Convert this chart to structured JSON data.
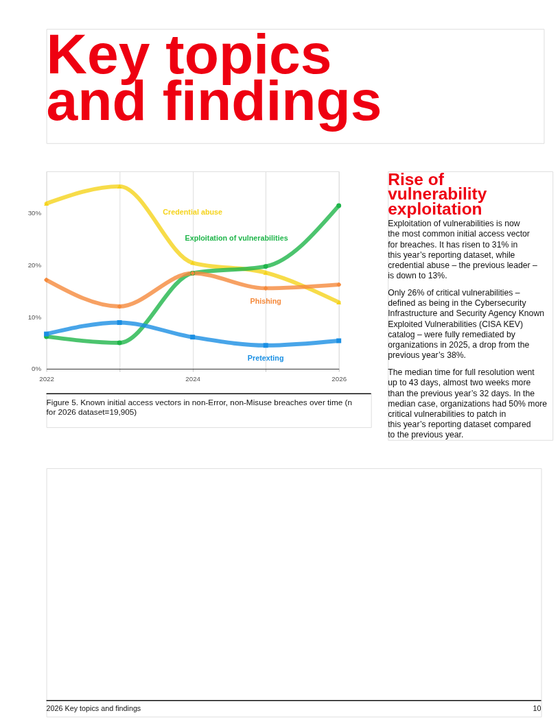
{
  "chart_data": {
    "type": "line",
    "title": "Key topics and findings",
    "x": [
      2022,
      2023,
      2024,
      2025,
      2026
    ],
    "xlim": [
      2022,
      2026
    ],
    "xticks": [
      2022,
      {
        "value": 2023,
        "label": null
      },
      2024,
      {
        "value": 2025,
        "label": null
      },
      2026
    ],
    "ylim": [
      0,
      38
    ],
    "yticks": [
      {
        "value": 0,
        "label": "0%"
      },
      {
        "value": 10,
        "label": "10%"
      },
      {
        "value": 20,
        "label": "20%"
      },
      {
        "value": 30,
        "label": "30%"
      }
    ],
    "grid": "x",
    "line_style": "solid",
    "series": [
      {
        "name": "Credential abuse",
        "color": "#f5d31c",
        "marker": "triangle",
        "values": [
          31.8,
          35.1,
          20.4,
          18.5,
          12.8
        ]
      },
      {
        "name": "Exploitation of vulnerabilities",
        "color": "#1fb54a",
        "marker": "circle",
        "values": [
          6.2,
          5.0,
          18.4,
          19.7,
          31.4
        ]
      },
      {
        "name": "Phishing",
        "color": "#f58a3c",
        "marker": "diamond",
        "values": [
          17.1,
          12.0,
          18.4,
          15.5,
          16.2
        ]
      },
      {
        "name": "Pretexting",
        "color": "#1a8fe3",
        "marker": "square",
        "values": [
          6.7,
          8.9,
          6.1,
          4.5,
          5.4
        ]
      }
    ],
    "annotations": [
      "Rise of vulnerability exploitation",
      "Exploitation of vulnerabilities is now the most common initial access vector for breaches. It has risen to 31% in this year’s reporting dataset, while credential abuse – the previous leader – is down to 13%.",
      "Only 26% of critical vulnerabilities – defined as being in the Cybersecurity Infrastructure and Security Agency Known Exploited Vulnerabilities (CISA KEV) catalog – were fully remediated by organizations in 2025, a drop from the previous year’s 38%.",
      "The median time for full resolution went up to 43 days, almost two weeks more than the previous year’s 32 days. In the median case, organizations had 50% more critical vulnerabilities to patch in this year’s reporting dataset compared to the previous year.",
      "Figure 5. Known initial access vectors in non-Error, non-Misuse breaches over time (n for 2026 dataset=19,905)",
      "2026 Key topics and findings",
      "10"
    ]
  }
}
